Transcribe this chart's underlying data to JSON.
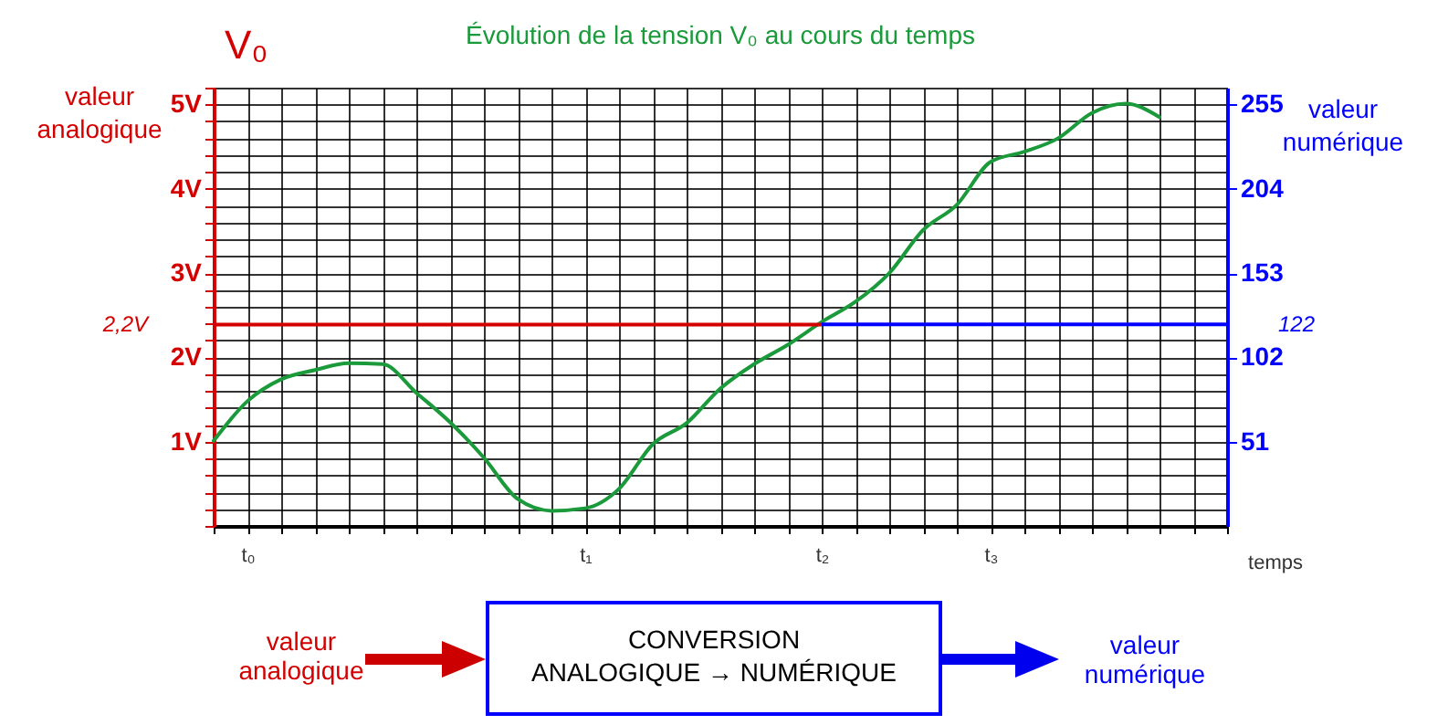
{
  "chart_data": {
    "type": "line",
    "title": "Évolution de la tension V₀ au cours du temps",
    "xlabel": "temps",
    "ylabel": "valeur analogique",
    "y2label": "valeur numérique",
    "annotations": [
      "V₀",
      "valeur analogique",
      "CONVERSION",
      "ANALOGIQUE → NUMÉRIQUE",
      "valeur numérique"
    ],
    "categories": [
      null,
      "t₀",
      null,
      null,
      null,
      null,
      null,
      null,
      null,
      null,
      null,
      "t₁",
      null,
      null,
      null,
      null,
      null,
      null,
      "t₂",
      null,
      null,
      null,
      null,
      "t₃",
      null,
      null,
      null,
      null,
      null,
      null,
      null
    ],
    "series": [
      {
        "color": "#1a9a3a",
        "values": [
          1.01,
          1.48,
          1.74,
          1.85,
          1.93,
          1.92,
          1.58,
          1.23,
          0.81,
          0.32,
          0.18,
          0.21,
          0.44,
          0.97,
          1.22,
          1.63,
          1.92,
          2.15,
          2.42,
          2.66,
          3.0,
          3.51,
          3.81,
          4.32,
          4.44,
          4.6,
          4.9,
          5.01,
          4.85,
          null,
          null
        ]
      }
    ],
    "ylim": [
      0,
      5.2
    ],
    "yticks": [
      {
        "value": 0,
        "label": null
      },
      {
        "value": 0.2,
        "label": null
      },
      {
        "value": 0.4,
        "label": null
      },
      {
        "value": 0.6,
        "label": null
      },
      {
        "value": 0.8,
        "label": null
      },
      {
        "value": 1,
        "label": "1V"
      },
      {
        "value": 1.2,
        "label": null
      },
      {
        "value": 1.4,
        "label": null
      },
      {
        "value": 1.6,
        "label": null
      },
      {
        "value": 1.8,
        "label": null
      },
      {
        "value": 2,
        "label": "2V"
      },
      {
        "value": 2.2,
        "label": null
      },
      {
        "value": 2.4,
        "label": null
      },
      {
        "value": 2.6,
        "label": null
      },
      {
        "value": 2.8,
        "label": null
      },
      {
        "value": 3,
        "label": "3V"
      },
      {
        "value": 3.2,
        "label": null
      },
      {
        "value": 3.4,
        "label": null
      },
      {
        "value": 3.6,
        "label": null
      },
      {
        "value": 3.8,
        "label": null
      },
      {
        "value": 4,
        "label": "4V"
      },
      {
        "value": 4.2,
        "label": null
      },
      {
        "value": 4.4,
        "label": null
      },
      {
        "value": 4.6,
        "label": null
      },
      {
        "value": 4.8,
        "label": null
      },
      {
        "value": 5,
        "label": "5V"
      },
      {
        "value": 5.2,
        "label": null
      }
    ],
    "y2lim": [
      0,
      265.2
    ],
    "y2ticks": [
      51,
      102,
      153,
      204,
      255
    ],
    "ref_lines": [
      {
        "axis": "y",
        "value": 2.39,
        "label": "2,2V",
        "color": "#d40000"
      },
      {
        "axis": "y2",
        "value": 122,
        "label": "122",
        "color": "#0000ff"
      }
    ],
    "grid": true,
    "legend": false
  }
}
